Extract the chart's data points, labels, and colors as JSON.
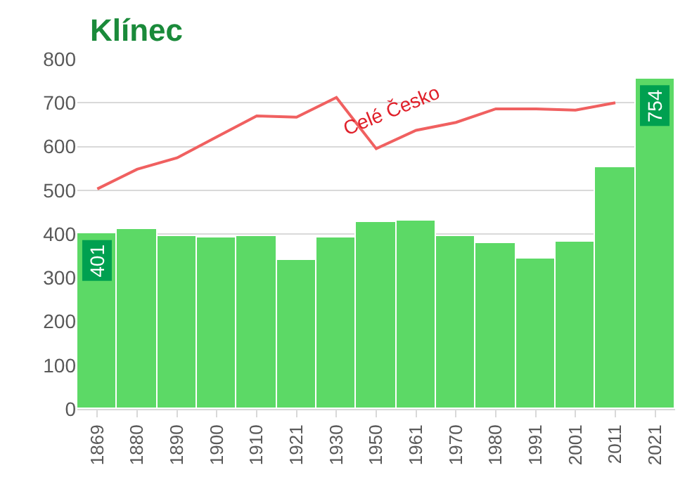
{
  "chart_data": {
    "type": "bar",
    "title": "Klínec",
    "categories": [
      "1869",
      "1880",
      "1890",
      "1900",
      "1910",
      "1921",
      "1930",
      "1950",
      "1961",
      "1970",
      "1980",
      "1991",
      "2001",
      "2011",
      "2021"
    ],
    "series": [
      {
        "color": "#5cd966",
        "values": [
          401,
          410,
          396,
          393,
          396,
          342,
          393,
          427,
          430,
          396,
          379,
          345,
          383,
          553,
          754
        ],
        "value_labels": [
          "401",
          null,
          null,
          null,
          null,
          null,
          null,
          null,
          null,
          null,
          null,
          null,
          null,
          null,
          "754"
        ]
      },
      {
        "type": "line",
        "name": "Celé Česko",
        "color": "#f06060",
        "values": [
          503,
          548,
          574,
          622,
          670,
          667,
          712,
          595,
          637,
          655,
          686,
          686,
          683,
          700,
          null
        ]
      }
    ],
    "ylim": [
      0,
      800
    ],
    "yticks": [
      0,
      100,
      200,
      300,
      400,
      500,
      600,
      700,
      800
    ],
    "grid": "y"
  }
}
